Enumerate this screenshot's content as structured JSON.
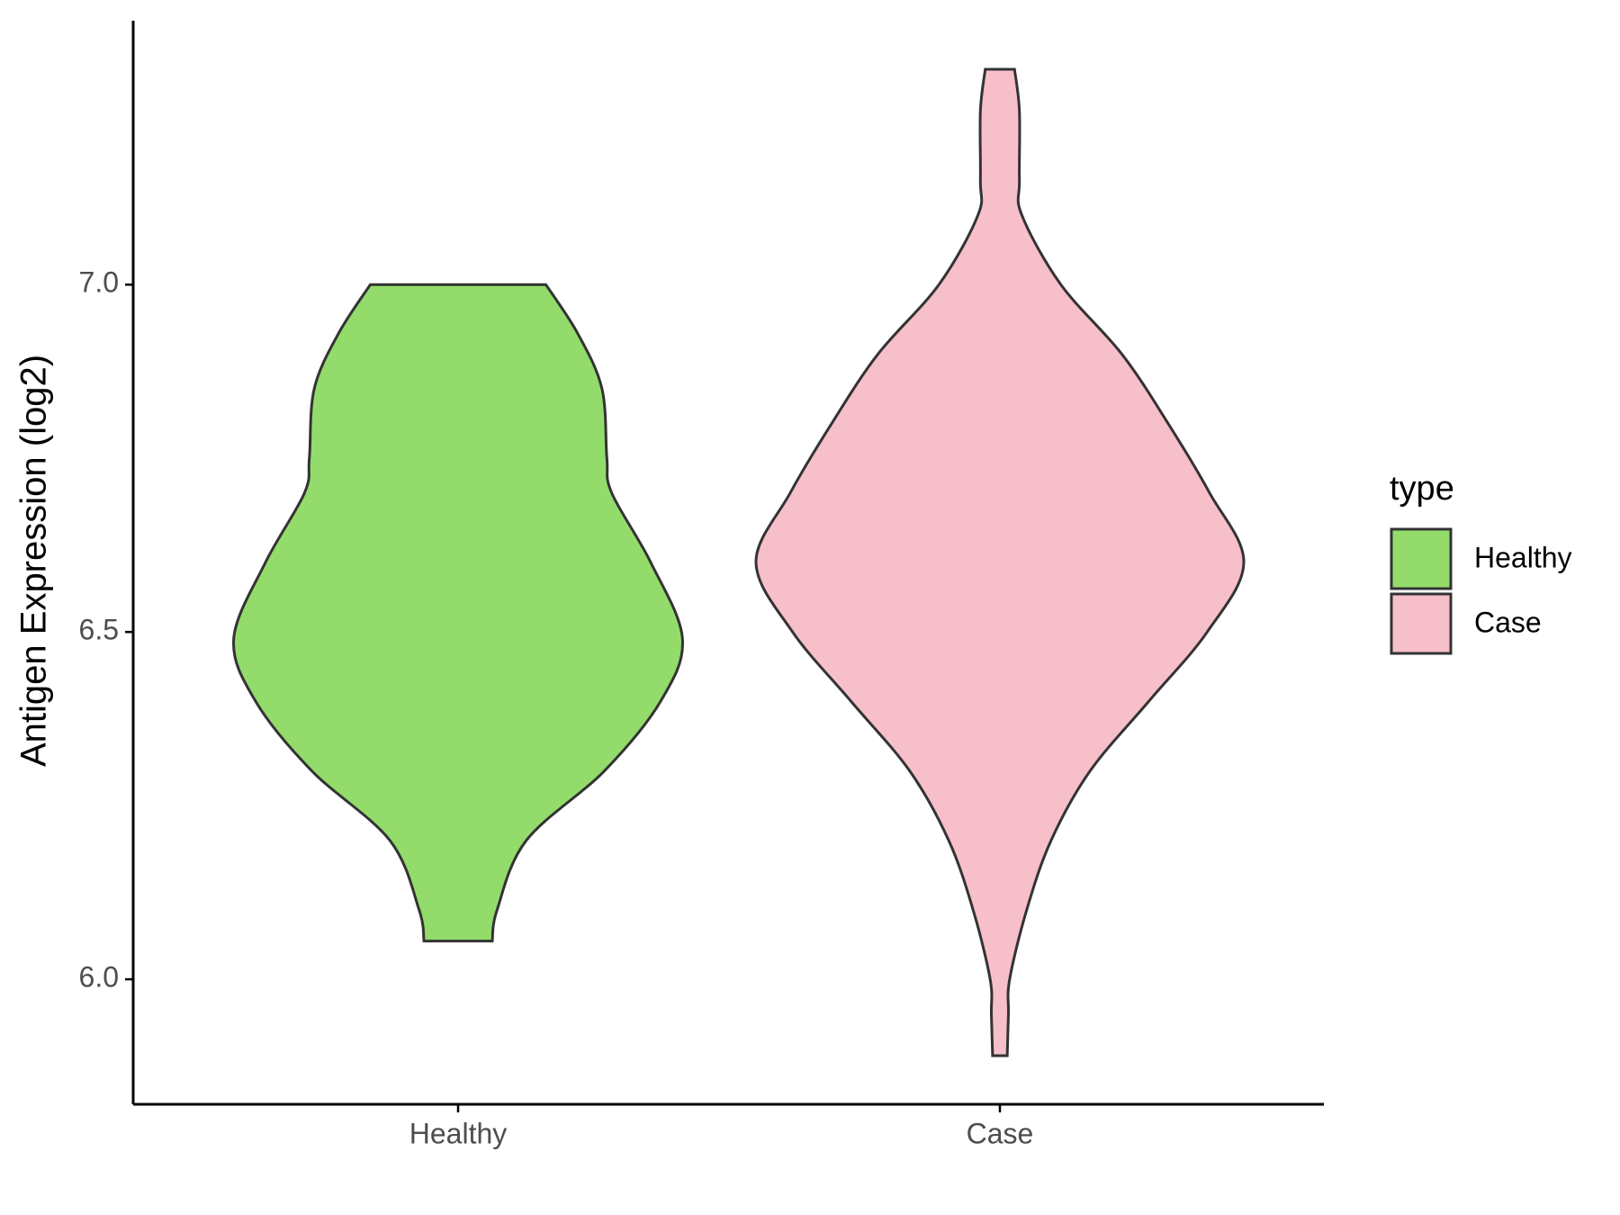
{
  "chart_data": {
    "type": "violin",
    "y_label": "Antigen Expression (log2)",
    "categories": [
      "Healthy",
      "Case"
    ],
    "legend_title": "type",
    "legend_position": "right",
    "series": [
      {
        "name": "Healthy",
        "color": "#93dc6b",
        "y": [
          6.055,
          6.1,
          6.2,
          6.3,
          6.4,
          6.49,
          6.6,
          6.7,
          6.75,
          6.85,
          6.93,
          7.0
        ],
        "density": [
          0.14,
          0.16,
          0.28,
          0.6,
          0.83,
          0.92,
          0.79,
          0.63,
          0.61,
          0.59,
          0.49,
          0.36
        ]
      },
      {
        "name": "Case",
        "color": "#f7bfca",
        "y": [
          5.89,
          5.95,
          6.0,
          6.1,
          6.2,
          6.3,
          6.4,
          6.5,
          6.6,
          6.7,
          6.8,
          6.9,
          7.0,
          7.1,
          7.15,
          7.25,
          7.31
        ],
        "density": [
          0.03,
          0.035,
          0.04,
          0.11,
          0.21,
          0.37,
          0.61,
          0.85,
          1.0,
          0.86,
          0.69,
          0.5,
          0.25,
          0.09,
          0.08,
          0.08,
          0.06
        ]
      }
    ],
    "ylim": [
      5.82,
      7.38
    ],
    "yticks": [
      {
        "value": 6,
        "label": "6.0"
      },
      6.5,
      {
        "value": 7,
        "label": "7.0"
      }
    ]
  }
}
